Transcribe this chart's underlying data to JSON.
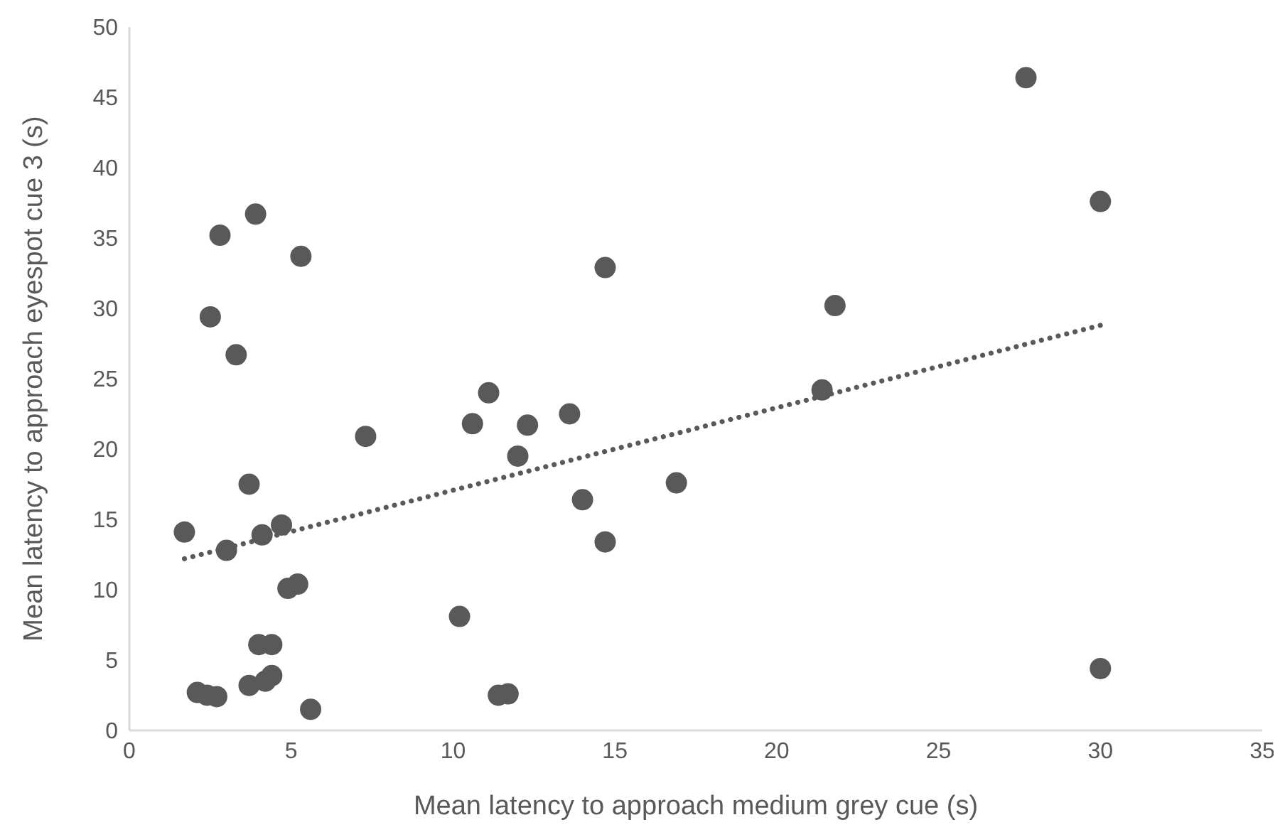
{
  "chart_data": {
    "type": "scatter",
    "xlabel": "Mean latency to approach medium grey cue (s)",
    "ylabel": "Mean latency to approach eyespot cue 3 (s)",
    "xlim": [
      0,
      35
    ],
    "xticks": [
      0,
      5,
      10,
      15,
      20,
      25,
      30,
      35
    ],
    "ylim": [
      0,
      50
    ],
    "yticks": [
      0,
      5,
      10,
      15,
      20,
      25,
      30,
      35,
      40,
      45,
      50
    ],
    "grid": false,
    "legend": false,
    "marker": "circle",
    "series": [
      {
        "color": "#595959",
        "x": [
          27.7,
          30,
          30,
          21.8,
          21.4,
          16.9,
          14.7,
          14.7,
          14.0,
          13.6,
          12.3,
          12.0,
          11.1,
          10.6,
          10.2,
          11.4,
          11.7,
          7.3,
          5.6,
          5.3,
          5.2,
          4.9,
          4.7,
          4.4,
          4.4,
          4.1,
          4.2,
          4.0,
          3.9,
          3.7,
          3.7,
          3.3,
          3.0,
          2.8,
          2.5,
          2.7,
          2.4,
          2.1,
          1.7
        ],
        "values": [
          46.4,
          37.6,
          4.4,
          30.2,
          24.2,
          17.6,
          32.9,
          13.4,
          16.4,
          22.5,
          21.7,
          19.5,
          24.0,
          21.8,
          8.1,
          2.5,
          2.6,
          20.9,
          1.5,
          33.7,
          10.4,
          10.1,
          14.6,
          6.1,
          3.9,
          13.9,
          3.5,
          6.1,
          36.7,
          17.5,
          3.2,
          26.7,
          12.8,
          35.2,
          29.4,
          2.4,
          2.5,
          2.7,
          14.1
        ]
      },
      {
        "type": "line",
        "color": "#595959",
        "line_style": "dotted",
        "marker": "none",
        "x": [
          1.7,
          30
        ],
        "values": [
          12.2,
          28.8
        ]
      }
    ]
  }
}
